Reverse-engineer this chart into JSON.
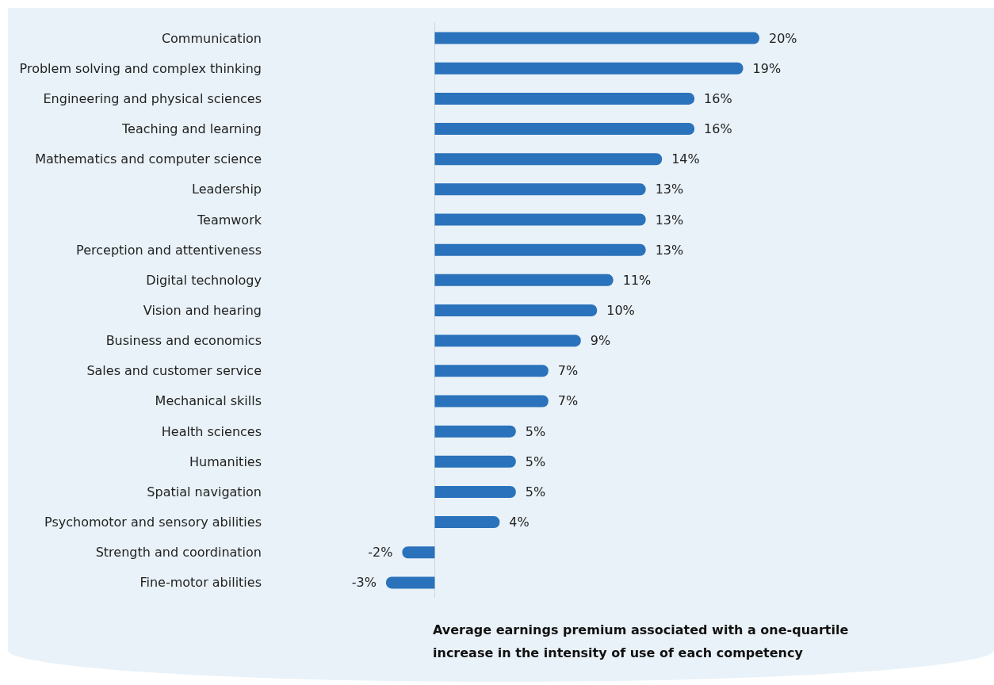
{
  "chart_data": {
    "type": "bar",
    "orientation": "horizontal",
    "xlabel": "Average earnings premium associated with a one-quartile increase in the intensity of use of each competency",
    "categories": [
      "Communication",
      "Problem solving and complex thinking",
      "Engineering and physical sciences",
      "Teaching and learning",
      "Mathematics and computer science",
      "Leadership",
      "Teamwork",
      "Perception and attentiveness",
      "Digital technology",
      "Vision and hearing",
      "Business and economics",
      "Sales and customer service",
      "Mechanical skills",
      "Health sciences",
      "Humanities",
      "Spatial navigation",
      "Psychomotor and sensory abilities",
      "Strength and coordination",
      "Fine-motor abilities"
    ],
    "values": [
      20,
      19,
      16,
      16,
      14,
      13,
      13,
      13,
      11,
      10,
      9,
      7,
      7,
      5,
      5,
      5,
      4,
      -2,
      -3
    ],
    "value_labels": [
      "20%",
      "19%",
      "16%",
      "16%",
      "14%",
      "13%",
      "13%",
      "13%",
      "11%",
      "10%",
      "9%",
      "7%",
      "7%",
      "5%",
      "5%",
      "5%",
      "4%",
      "-2%",
      "-3%"
    ],
    "color": "#2a72bb",
    "grid": false,
    "tick_labels": "y"
  }
}
